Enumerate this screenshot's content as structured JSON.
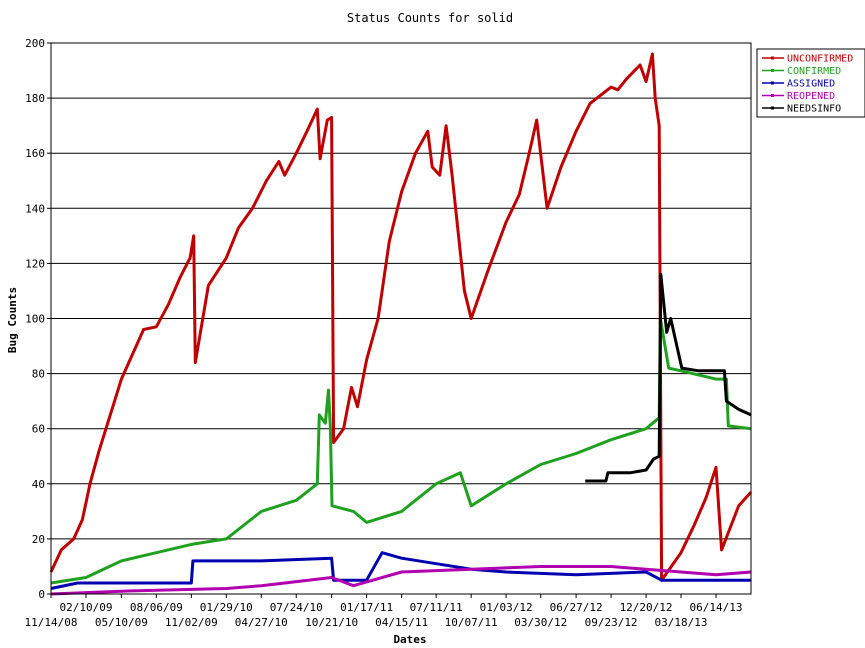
{
  "chart_data": {
    "type": "line",
    "title": "Status Counts for solid",
    "xlabel": "Dates",
    "ylabel": "Bug Counts",
    "ylim": [
      0,
      200
    ],
    "yticks": [
      0,
      20,
      40,
      60,
      80,
      100,
      120,
      140,
      160,
      180,
      200
    ],
    "xlim": [
      "2008-11-14",
      "2013-09-10"
    ],
    "xtick_labels_upper": [
      "02/10/09",
      "08/06/09",
      "01/29/10",
      "07/24/10",
      "01/17/11",
      "07/11/11",
      "01/03/12",
      "06/27/12",
      "12/20/12",
      "06/14/13"
    ],
    "xtick_labels_lower": [
      "11/14/08",
      "05/10/09",
      "11/02/09",
      "04/27/10",
      "10/21/10",
      "04/15/11",
      "10/07/11",
      "03/30/12",
      "09/23/12",
      "03/18/13"
    ],
    "grid": "horizontal",
    "legend_position": "right",
    "series": [
      {
        "name": "UNCONFIRMED",
        "color": "#c00000",
        "points": [
          [
            "2008-11-14",
            8
          ],
          [
            "2008-12-10",
            16
          ],
          [
            "2009-01-10",
            20
          ],
          [
            "2009-02-01",
            27
          ],
          [
            "2009-02-20",
            40
          ],
          [
            "2009-03-15",
            52
          ],
          [
            "2009-04-10",
            64
          ],
          [
            "2009-05-10",
            78
          ],
          [
            "2009-06-10",
            88
          ],
          [
            "2009-07-05",
            96
          ],
          [
            "2009-08-06",
            97
          ],
          [
            "2009-09-05",
            105
          ],
          [
            "2009-10-05",
            115
          ],
          [
            "2009-10-30",
            122
          ],
          [
            "2009-11-08",
            130
          ],
          [
            "2009-11-12",
            84
          ],
          [
            "2009-12-15",
            112
          ],
          [
            "2010-01-29",
            122
          ],
          [
            "2010-03-01",
            133
          ],
          [
            "2010-04-05",
            140
          ],
          [
            "2010-05-10",
            150
          ],
          [
            "2010-06-10",
            157
          ],
          [
            "2010-06-25",
            152
          ],
          [
            "2010-07-24",
            160
          ],
          [
            "2010-08-20",
            168
          ],
          [
            "2010-09-15",
            176
          ],
          [
            "2010-09-22",
            158
          ],
          [
            "2010-10-10",
            172
          ],
          [
            "2010-10-21",
            173
          ],
          [
            "2010-10-26",
            55
          ],
          [
            "2010-11-20",
            60
          ],
          [
            "2010-12-10",
            75
          ],
          [
            "2010-12-25",
            68
          ],
          [
            "2011-01-17",
            85
          ],
          [
            "2011-02-15",
            100
          ],
          [
            "2011-03-15",
            128
          ],
          [
            "2011-04-15",
            146
          ],
          [
            "2011-05-20",
            160
          ],
          [
            "2011-06-20",
            168
          ],
          [
            "2011-07-01",
            155
          ],
          [
            "2011-07-20",
            152
          ],
          [
            "2011-08-05",
            170
          ],
          [
            "2011-08-20",
            152
          ],
          [
            "2011-09-20",
            110
          ],
          [
            "2011-10-07",
            100
          ],
          [
            "2011-11-20",
            118
          ],
          [
            "2012-01-03",
            135
          ],
          [
            "2012-02-05",
            145
          ],
          [
            "2012-03-01",
            160
          ],
          [
            "2012-03-20",
            172
          ],
          [
            "2012-04-15",
            140
          ],
          [
            "2012-05-20",
            155
          ],
          [
            "2012-06-27",
            168
          ],
          [
            "2012-08-01",
            178
          ],
          [
            "2012-09-23",
            184
          ],
          [
            "2012-10-10",
            183
          ],
          [
            "2012-11-01",
            187
          ],
          [
            "2012-12-05",
            192
          ],
          [
            "2012-12-20",
            186
          ],
          [
            "2013-01-05",
            196
          ],
          [
            "2013-01-12",
            180
          ],
          [
            "2013-01-22",
            170
          ],
          [
            "2013-01-28",
            5
          ],
          [
            "2013-03-18",
            15
          ],
          [
            "2013-04-20",
            25
          ],
          [
            "2013-05-20",
            35
          ],
          [
            "2013-06-14",
            46
          ],
          [
            "2013-06-28",
            16
          ],
          [
            "2013-08-10",
            32
          ],
          [
            "2013-09-10",
            37
          ]
        ]
      },
      {
        "name": "CONFIRMED",
        "color": "#20a020",
        "points": [
          [
            "2008-11-14",
            4
          ],
          [
            "2009-02-10",
            6
          ],
          [
            "2009-05-10",
            12
          ],
          [
            "2009-08-06",
            15
          ],
          [
            "2009-11-02",
            18
          ],
          [
            "2010-01-29",
            20
          ],
          [
            "2010-04-27",
            30
          ],
          [
            "2010-07-24",
            34
          ],
          [
            "2010-09-15",
            40
          ],
          [
            "2010-09-20",
            65
          ],
          [
            "2010-10-05",
            62
          ],
          [
            "2010-10-13",
            74
          ],
          [
            "2010-10-18",
            60
          ],
          [
            "2010-10-22",
            32
          ],
          [
            "2010-12-15",
            30
          ],
          [
            "2011-01-17",
            26
          ],
          [
            "2011-04-15",
            30
          ],
          [
            "2011-07-11",
            40
          ],
          [
            "2011-09-10",
            44
          ],
          [
            "2011-10-07",
            32
          ],
          [
            "2012-01-03",
            40
          ],
          [
            "2012-03-30",
            47
          ],
          [
            "2012-06-27",
            51
          ],
          [
            "2012-09-23",
            56
          ],
          [
            "2012-12-20",
            60
          ],
          [
            "2013-01-22",
            64
          ],
          [
            "2013-01-25",
            100
          ],
          [
            "2013-02-15",
            82
          ],
          [
            "2013-03-18",
            81
          ],
          [
            "2013-06-14",
            78
          ],
          [
            "2013-07-10",
            78
          ],
          [
            "2013-07-15",
            61
          ],
          [
            "2013-09-10",
            60
          ]
        ]
      },
      {
        "name": "ASSIGNED",
        "color": "#0000b0",
        "points": [
          [
            "2008-11-14",
            2
          ],
          [
            "2009-01-20",
            4
          ],
          [
            "2009-11-02",
            4
          ],
          [
            "2009-11-06",
            12
          ],
          [
            "2010-04-27",
            12
          ],
          [
            "2010-10-21",
            13
          ],
          [
            "2010-10-26",
            5
          ],
          [
            "2011-01-17",
            5
          ],
          [
            "2011-02-25",
            15
          ],
          [
            "2011-04-15",
            13
          ],
          [
            "2011-07-11",
            11
          ],
          [
            "2011-10-07",
            9
          ],
          [
            "2012-01-03",
            8
          ],
          [
            "2012-06-27",
            7
          ],
          [
            "2012-12-20",
            8
          ],
          [
            "2013-01-28",
            5
          ],
          [
            "2013-09-10",
            5
          ]
        ]
      },
      {
        "name": "REOPENED",
        "color": "#b000b0",
        "points": [
          [
            "2008-11-14",
            0
          ],
          [
            "2009-05-10",
            1
          ],
          [
            "2010-01-29",
            2
          ],
          [
            "2010-04-27",
            3
          ],
          [
            "2010-10-21",
            6
          ],
          [
            "2010-12-15",
            3
          ],
          [
            "2011-04-15",
            8
          ],
          [
            "2011-10-07",
            9
          ],
          [
            "2012-03-30",
            10
          ],
          [
            "2012-09-23",
            10
          ],
          [
            "2013-03-18",
            8
          ],
          [
            "2013-06-14",
            7
          ],
          [
            "2013-09-10",
            8
          ]
        ]
      },
      {
        "name": "NEEDSINFO",
        "color": "#000000",
        "points": [
          [
            "2012-07-20",
            41
          ],
          [
            "2012-09-10",
            41
          ],
          [
            "2012-09-15",
            44
          ],
          [
            "2012-11-10",
            44
          ],
          [
            "2012-12-20",
            45
          ],
          [
            "2013-01-08",
            49
          ],
          [
            "2013-01-22",
            50
          ],
          [
            "2013-01-26",
            116
          ],
          [
            "2013-02-10",
            95
          ],
          [
            "2013-02-20",
            100
          ],
          [
            "2013-03-20",
            82
          ],
          [
            "2013-05-01",
            81
          ],
          [
            "2013-06-14",
            81
          ],
          [
            "2013-07-05",
            81
          ],
          [
            "2013-07-10",
            70
          ],
          [
            "2013-08-10",
            67
          ],
          [
            "2013-09-10",
            65
          ]
        ]
      }
    ]
  }
}
